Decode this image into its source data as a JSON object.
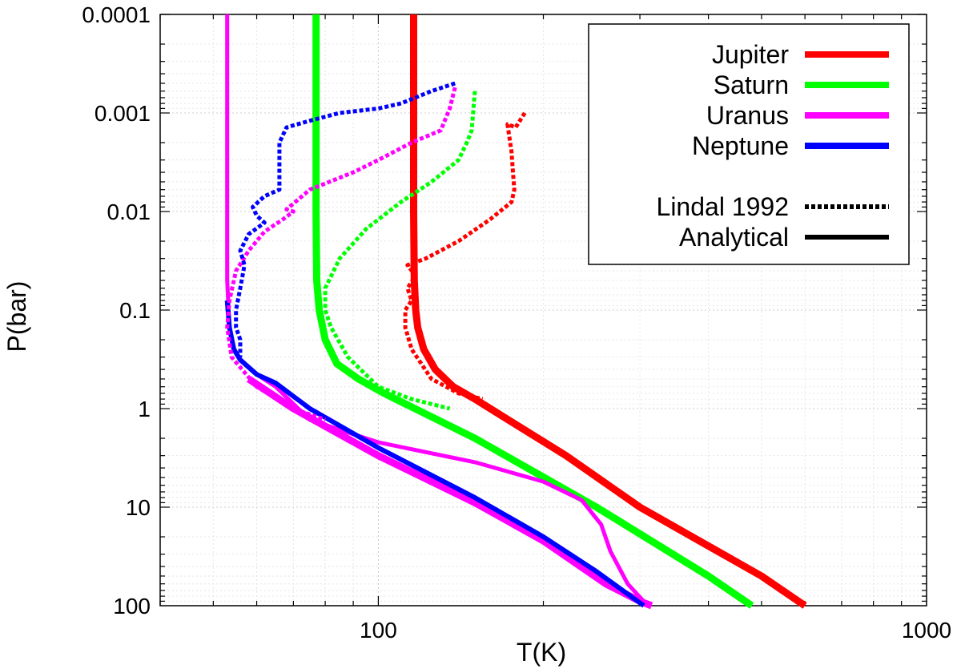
{
  "chart_data": {
    "type": "line",
    "xlabel": "T(K)",
    "ylabel": "P(bar)",
    "x_scale": "log",
    "y_scale": "log",
    "y_inverted": true,
    "xlim": [
      40,
      1000
    ],
    "ylim": [
      0.0001,
      100
    ],
    "x_ticks": [
      {
        "value": 100,
        "label": "100"
      },
      {
        "value": 1000,
        "label": "1000"
      }
    ],
    "y_ticks": [
      {
        "value": 0.0001,
        "label": "0.0001"
      },
      {
        "value": 0.001,
        "label": "0.001"
      },
      {
        "value": 0.01,
        "label": "0.01"
      },
      {
        "value": 0.1,
        "label": "0.1"
      },
      {
        "value": 1,
        "label": "1"
      },
      {
        "value": 10,
        "label": "10"
      },
      {
        "value": 100,
        "label": "100"
      }
    ],
    "grid": true,
    "legend": {
      "placement": "top-right",
      "planets": [
        {
          "name": "Jupiter",
          "color": "#ff0000"
        },
        {
          "name": "Saturn",
          "color": "#00ff00"
        },
        {
          "name": "Uranus",
          "color": "#ff00ff"
        },
        {
          "name": "Neptune",
          "color": "#0000ff"
        }
      ],
      "styles": [
        {
          "name": "Lindal 1992",
          "dash": "dotted"
        },
        {
          "name": "Analytical",
          "dash": "solid"
        }
      ]
    },
    "series": [
      {
        "planet": "Jupiter",
        "kind": "Analytical",
        "color": "#ff0000",
        "points": [
          [
            116,
            0.0001
          ],
          [
            116,
            0.001
          ],
          [
            116,
            0.01
          ],
          [
            116.3,
            0.05
          ],
          [
            117,
            0.1
          ],
          [
            118,
            0.15
          ],
          [
            121,
            0.25
          ],
          [
            127,
            0.4
          ],
          [
            137,
            0.6
          ],
          [
            150,
            0.8
          ],
          [
            160,
            1
          ],
          [
            220,
            3
          ],
          [
            300,
            10
          ],
          [
            500,
            50
          ],
          [
            600,
            100
          ]
        ]
      },
      {
        "planet": "Saturn",
        "kind": "Analytical",
        "color": "#00ff00",
        "points": [
          [
            77,
            0.0001
          ],
          [
            77,
            0.001
          ],
          [
            77,
            0.01
          ],
          [
            77.2,
            0.05
          ],
          [
            78,
            0.1
          ],
          [
            80,
            0.2
          ],
          [
            84,
            0.35
          ],
          [
            92,
            0.5
          ],
          [
            100,
            0.65
          ],
          [
            105,
            0.75
          ],
          [
            150,
            2
          ],
          [
            250,
            10
          ],
          [
            400,
            50
          ],
          [
            480,
            100
          ]
        ]
      },
      {
        "planet": "Uranus",
        "kind": "Analytical",
        "color": "#ff00ff",
        "points": [
          [
            53,
            0.0001
          ],
          [
            53,
            0.001
          ],
          [
            53,
            0.01
          ],
          [
            53,
            0.05
          ],
          [
            53.5,
            0.15
          ],
          [
            54.5,
            0.25
          ],
          [
            56,
            0.32
          ],
          [
            60,
            0.45
          ],
          [
            65,
            0.6
          ],
          [
            75,
            1.3
          ],
          [
            100,
            2.2
          ],
          [
            150,
            3.5
          ],
          [
            200,
            5.5
          ],
          [
            235,
            8.5
          ],
          [
            255,
            15
          ],
          [
            265,
            28
          ],
          [
            285,
            60
          ],
          [
            310,
            100
          ]
        ]
      },
      {
        "planet": "Uranus",
        "kind": "Analytical",
        "color": "#ff00ff",
        "points": [
          [
            58,
            0.5
          ],
          [
            70,
            1
          ],
          [
            100,
            3
          ],
          [
            150,
            9
          ],
          [
            200,
            22
          ],
          [
            260,
            60
          ],
          [
            300,
            90
          ],
          [
            315,
            100
          ]
        ]
      },
      {
        "planet": "Neptune",
        "kind": "Analytical",
        "color": "#0000ff",
        "points": [
          [
            53,
            0.08
          ],
          [
            53.5,
            0.15
          ],
          [
            54.5,
            0.25
          ],
          [
            56,
            0.32
          ],
          [
            60,
            0.45
          ],
          [
            65,
            0.55
          ],
          [
            75,
            1
          ],
          [
            100,
            2.5
          ],
          [
            150,
            8
          ],
          [
            200,
            20
          ],
          [
            250,
            45
          ],
          [
            305,
            100
          ]
        ]
      }
    ],
    "observed_series": [
      {
        "planet": "Jupiter",
        "kind": "Lindal 1992",
        "color": "#ff0000",
        "points": [
          [
            185,
            0.001
          ],
          [
            178,
            0.0014
          ],
          [
            172,
            0.0013
          ],
          [
            175,
            0.0025
          ],
          [
            176,
            0.004
          ],
          [
            177,
            0.006
          ],
          [
            175,
            0.008
          ],
          [
            160,
            0.012
          ],
          [
            140,
            0.02
          ],
          [
            122,
            0.03
          ],
          [
            113,
            0.035
          ],
          [
            117,
            0.045
          ],
          [
            113,
            0.06
          ],
          [
            115,
            0.08
          ],
          [
            112,
            0.1
          ],
          [
            112,
            0.15
          ],
          [
            115,
            0.25
          ],
          [
            125,
            0.5
          ],
          [
            140,
            0.7
          ],
          [
            155,
            0.8
          ]
        ]
      },
      {
        "planet": "Saturn",
        "kind": "Lindal 1992",
        "color": "#00ff00",
        "points": [
          [
            150,
            0.0006
          ],
          [
            148,
            0.0015
          ],
          [
            145,
            0.002
          ],
          [
            140,
            0.003
          ],
          [
            125,
            0.005
          ],
          [
            110,
            0.008
          ],
          [
            95,
            0.015
          ],
          [
            85,
            0.03
          ],
          [
            80,
            0.06
          ],
          [
            80,
            0.1
          ],
          [
            82,
            0.15
          ],
          [
            88,
            0.3
          ],
          [
            100,
            0.6
          ],
          [
            115,
            0.8
          ],
          [
            135,
            1
          ]
        ]
      },
      {
        "planet": "Uranus",
        "kind": "Lindal 1992",
        "color": "#ff00ff",
        "points": [
          [
            138,
            0.00055
          ],
          [
            135,
            0.0009
          ],
          [
            130,
            0.0015
          ],
          [
            115,
            0.002
          ],
          [
            100,
            0.003
          ],
          [
            90,
            0.004
          ],
          [
            75,
            0.006
          ],
          [
            68,
            0.0095
          ],
          [
            70,
            0.01
          ],
          [
            67,
            0.012
          ],
          [
            62,
            0.016
          ],
          [
            58,
            0.025
          ],
          [
            55,
            0.04
          ],
          [
            53.5,
            0.08
          ],
          [
            53,
            0.15
          ],
          [
            54,
            0.3
          ],
          [
            60,
            0.6
          ],
          [
            70,
            1
          ],
          [
            80,
            1.3
          ]
        ]
      },
      {
        "planet": "Neptune",
        "kind": "Lindal 1992",
        "color": "#0000ff",
        "points": [
          [
            138,
            0.0005
          ],
          [
            125,
            0.0006
          ],
          [
            110,
            0.0008
          ],
          [
            100,
            0.0009
          ],
          [
            85,
            0.001
          ],
          [
            75,
            0.0012
          ],
          [
            68,
            0.0014
          ],
          [
            66,
            0.002
          ],
          [
            66,
            0.004
          ],
          [
            66,
            0.006
          ],
          [
            62,
            0.007
          ],
          [
            59,
            0.009
          ],
          [
            60,
            0.011
          ],
          [
            62,
            0.013
          ],
          [
            58,
            0.017
          ],
          [
            56,
            0.025
          ],
          [
            57,
            0.035
          ],
          [
            56,
            0.06
          ],
          [
            55,
            0.1
          ],
          [
            55,
            0.15
          ],
          [
            56,
            0.2
          ],
          [
            56,
            0.3
          ]
        ]
      }
    ]
  }
}
